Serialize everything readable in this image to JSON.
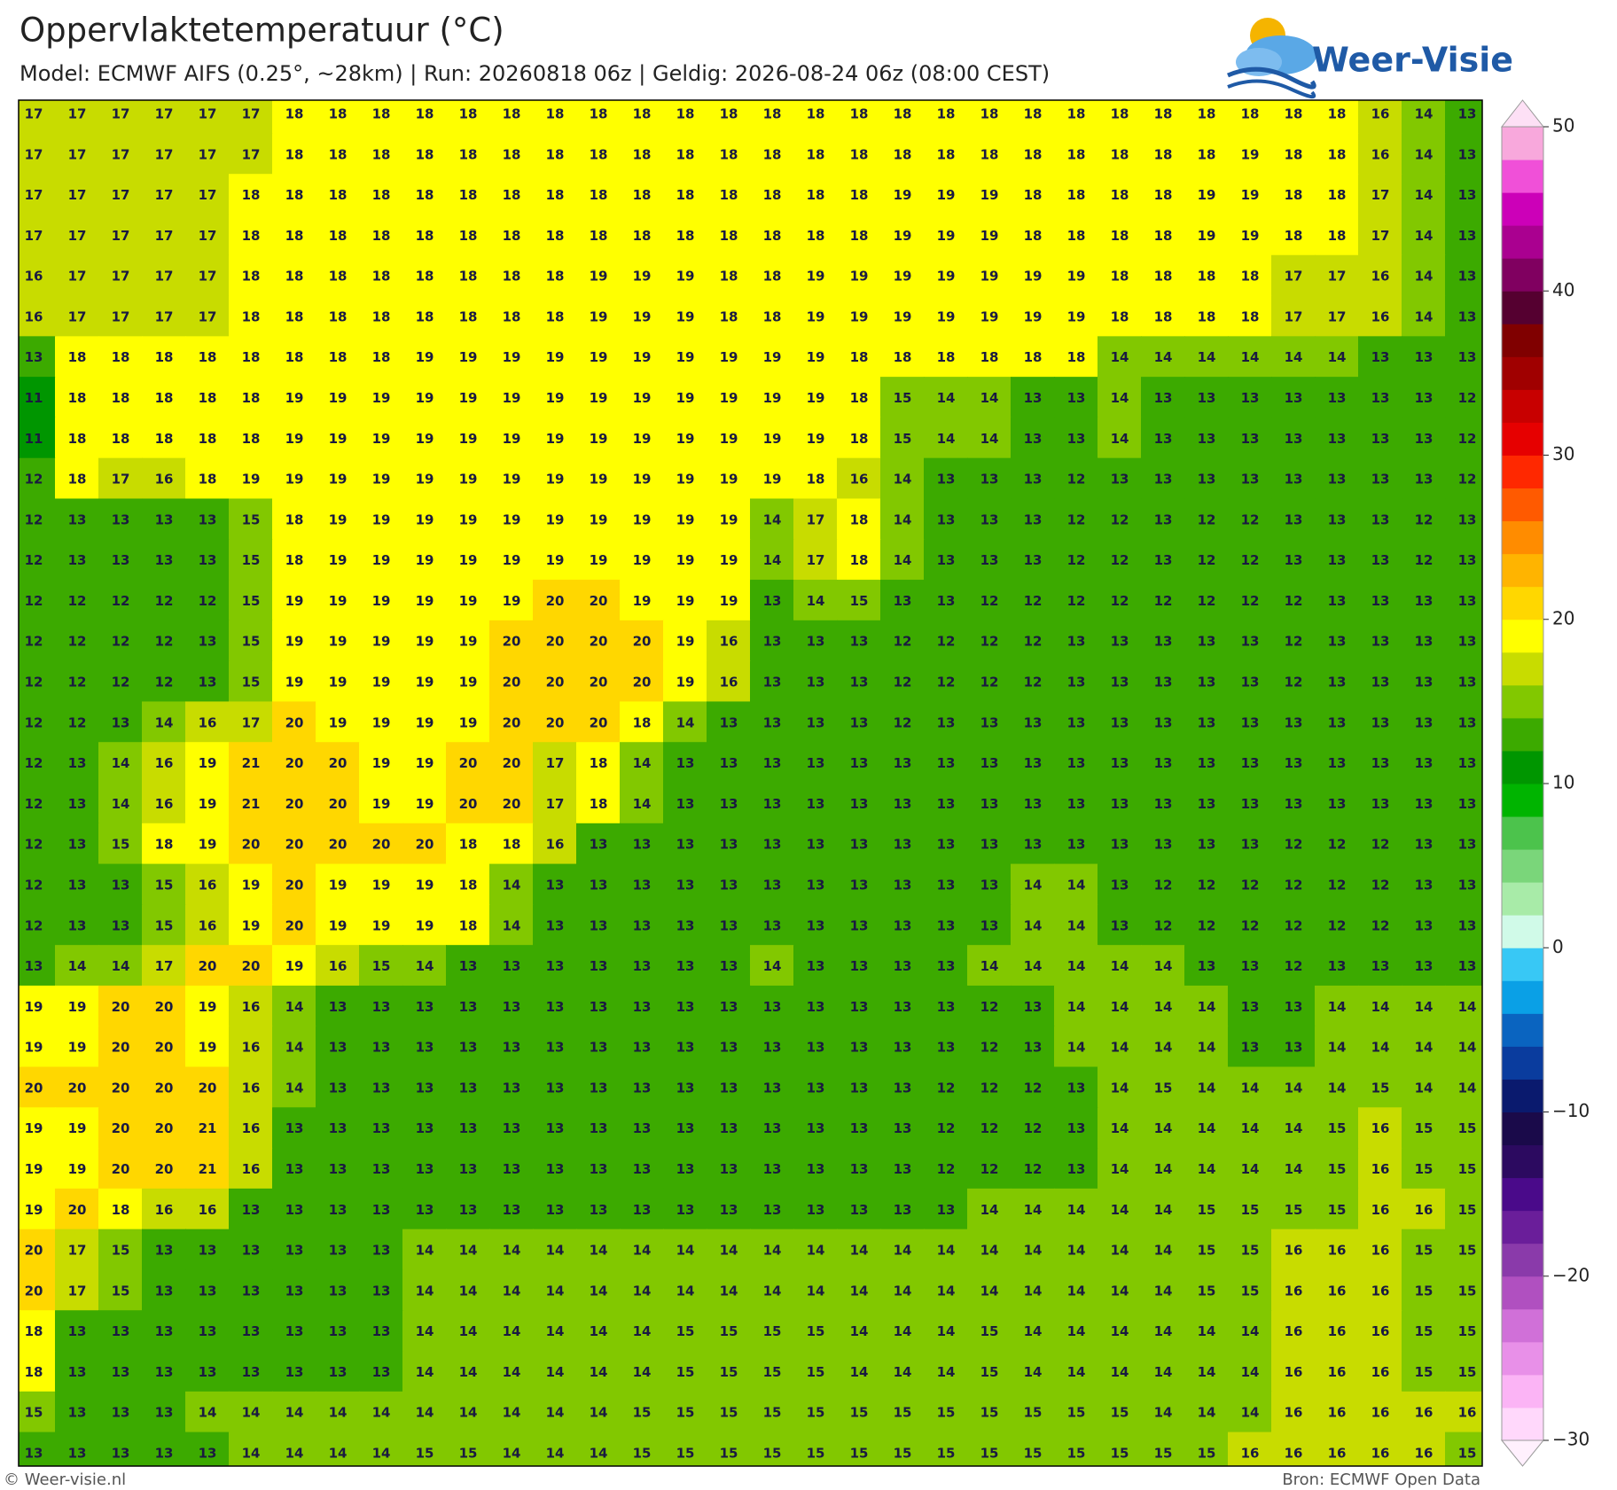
{
  "chart_data": {
    "type": "heatmap",
    "title": "Oppervlaktetemperatuur (°C)",
    "subtitle": "Model: ECMWF AIFS (0.25°, ~28km)  |  Run: 20260818 06z  |  Geldig: 2026-08-24 06z (08:00 CEST)",
    "values": [
      [
        17,
        17,
        17,
        17,
        17,
        17,
        18,
        18,
        18,
        18,
        18,
        18,
        18,
        18,
        18,
        18,
        18,
        18,
        18,
        18,
        18,
        18,
        18,
        18,
        18,
        18,
        18,
        18,
        18,
        18,
        18,
        16,
        14,
        13
      ],
      [
        17,
        17,
        17,
        17,
        17,
        17,
        18,
        18,
        18,
        18,
        18,
        18,
        18,
        18,
        18,
        18,
        18,
        18,
        18,
        18,
        18,
        18,
        18,
        18,
        18,
        18,
        18,
        18,
        19,
        18,
        18,
        16,
        14,
        13
      ],
      [
        17,
        17,
        17,
        17,
        17,
        18,
        18,
        18,
        18,
        18,
        18,
        18,
        18,
        18,
        18,
        18,
        18,
        18,
        18,
        18,
        19,
        19,
        19,
        18,
        18,
        18,
        18,
        19,
        19,
        18,
        18,
        17,
        14,
        13
      ],
      [
        17,
        17,
        17,
        17,
        17,
        18,
        18,
        18,
        18,
        18,
        18,
        18,
        18,
        18,
        18,
        18,
        18,
        18,
        18,
        18,
        19,
        19,
        19,
        18,
        18,
        18,
        18,
        19,
        19,
        18,
        18,
        17,
        14,
        13
      ],
      [
        16,
        17,
        17,
        17,
        17,
        18,
        18,
        18,
        18,
        18,
        18,
        18,
        18,
        19,
        19,
        19,
        18,
        18,
        19,
        19,
        19,
        19,
        19,
        19,
        19,
        18,
        18,
        18,
        18,
        17,
        17,
        16,
        14,
        13
      ],
      [
        16,
        17,
        17,
        17,
        17,
        18,
        18,
        18,
        18,
        18,
        18,
        18,
        18,
        19,
        19,
        19,
        18,
        18,
        19,
        19,
        19,
        19,
        19,
        19,
        19,
        18,
        18,
        18,
        18,
        17,
        17,
        16,
        14,
        13
      ],
      [
        13,
        18,
        18,
        18,
        18,
        18,
        18,
        18,
        18,
        19,
        19,
        19,
        19,
        19,
        19,
        19,
        19,
        19,
        19,
        18,
        18,
        18,
        18,
        18,
        18,
        14,
        14,
        14,
        14,
        14,
        14,
        13,
        13,
        13
      ],
      [
        11,
        18,
        18,
        18,
        18,
        18,
        19,
        19,
        19,
        19,
        19,
        19,
        19,
        19,
        19,
        19,
        19,
        19,
        19,
        18,
        15,
        14,
        14,
        13,
        13,
        14,
        13,
        13,
        13,
        13,
        13,
        13,
        13,
        12
      ],
      [
        11,
        18,
        18,
        18,
        18,
        18,
        19,
        19,
        19,
        19,
        19,
        19,
        19,
        19,
        19,
        19,
        19,
        19,
        19,
        18,
        15,
        14,
        14,
        13,
        13,
        14,
        13,
        13,
        13,
        13,
        13,
        13,
        13,
        12
      ],
      [
        12,
        18,
        17,
        16,
        18,
        19,
        19,
        19,
        19,
        19,
        19,
        19,
        19,
        19,
        19,
        19,
        19,
        19,
        18,
        16,
        14,
        13,
        13,
        13,
        12,
        13,
        13,
        13,
        13,
        13,
        13,
        13,
        13,
        12
      ],
      [
        12,
        13,
        13,
        13,
        13,
        15,
        18,
        19,
        19,
        19,
        19,
        19,
        19,
        19,
        19,
        19,
        19,
        14,
        17,
        18,
        14,
        13,
        13,
        13,
        12,
        12,
        13,
        12,
        12,
        13,
        13,
        13,
        12,
        13
      ],
      [
        12,
        13,
        13,
        13,
        13,
        15,
        18,
        19,
        19,
        19,
        19,
        19,
        19,
        19,
        19,
        19,
        19,
        14,
        17,
        18,
        14,
        13,
        13,
        13,
        12,
        12,
        13,
        12,
        12,
        13,
        13,
        13,
        12,
        13
      ],
      [
        12,
        12,
        12,
        12,
        12,
        15,
        19,
        19,
        19,
        19,
        19,
        19,
        20,
        20,
        19,
        19,
        19,
        13,
        14,
        15,
        13,
        13,
        12,
        12,
        12,
        12,
        12,
        12,
        12,
        12,
        13,
        13,
        13,
        13
      ],
      [
        12,
        12,
        12,
        12,
        13,
        15,
        19,
        19,
        19,
        19,
        19,
        20,
        20,
        20,
        20,
        19,
        16,
        13,
        13,
        13,
        12,
        12,
        12,
        12,
        13,
        13,
        13,
        13,
        13,
        12,
        13,
        13,
        13,
        13
      ],
      [
        12,
        12,
        12,
        12,
        13,
        15,
        19,
        19,
        19,
        19,
        19,
        20,
        20,
        20,
        20,
        19,
        16,
        13,
        13,
        13,
        12,
        12,
        12,
        12,
        13,
        13,
        13,
        13,
        13,
        12,
        13,
        13,
        13,
        13
      ],
      [
        12,
        12,
        13,
        14,
        16,
        17,
        20,
        19,
        19,
        19,
        19,
        20,
        20,
        20,
        18,
        14,
        13,
        13,
        13,
        13,
        12,
        13,
        13,
        13,
        13,
        13,
        13,
        13,
        13,
        13,
        13,
        13,
        13,
        13
      ],
      [
        12,
        13,
        14,
        16,
        19,
        21,
        20,
        20,
        19,
        19,
        20,
        20,
        17,
        18,
        14,
        13,
        13,
        13,
        13,
        13,
        13,
        13,
        13,
        13,
        13,
        13,
        13,
        13,
        13,
        13,
        13,
        13,
        13,
        13
      ],
      [
        12,
        13,
        14,
        16,
        19,
        21,
        20,
        20,
        19,
        19,
        20,
        20,
        17,
        18,
        14,
        13,
        13,
        13,
        13,
        13,
        13,
        13,
        13,
        13,
        13,
        13,
        13,
        13,
        13,
        13,
        13,
        13,
        13,
        13
      ],
      [
        12,
        13,
        15,
        18,
        19,
        20,
        20,
        20,
        20,
        20,
        18,
        18,
        16,
        13,
        13,
        13,
        13,
        13,
        13,
        13,
        13,
        13,
        13,
        13,
        13,
        13,
        13,
        13,
        13,
        12,
        12,
        12,
        13,
        13
      ],
      [
        12,
        13,
        13,
        15,
        16,
        19,
        20,
        19,
        19,
        19,
        18,
        14,
        13,
        13,
        13,
        13,
        13,
        13,
        13,
        13,
        13,
        13,
        13,
        14,
        14,
        13,
        12,
        12,
        12,
        12,
        12,
        12,
        13,
        13
      ],
      [
        12,
        13,
        13,
        15,
        16,
        19,
        20,
        19,
        19,
        19,
        18,
        14,
        13,
        13,
        13,
        13,
        13,
        13,
        13,
        13,
        13,
        13,
        13,
        14,
        14,
        13,
        12,
        12,
        12,
        12,
        12,
        12,
        13,
        13
      ],
      [
        13,
        14,
        14,
        17,
        20,
        20,
        19,
        16,
        15,
        14,
        13,
        13,
        13,
        13,
        13,
        13,
        13,
        14,
        13,
        13,
        13,
        13,
        14,
        14,
        14,
        14,
        14,
        13,
        13,
        12,
        13,
        13,
        13,
        13
      ],
      [
        19,
        19,
        20,
        20,
        19,
        16,
        14,
        13,
        13,
        13,
        13,
        13,
        13,
        13,
        13,
        13,
        13,
        13,
        13,
        13,
        13,
        13,
        12,
        13,
        14,
        14,
        14,
        14,
        13,
        13,
        14,
        14,
        14,
        14
      ],
      [
        19,
        19,
        20,
        20,
        19,
        16,
        14,
        13,
        13,
        13,
        13,
        13,
        13,
        13,
        13,
        13,
        13,
        13,
        13,
        13,
        13,
        13,
        12,
        13,
        14,
        14,
        14,
        14,
        13,
        13,
        14,
        14,
        14,
        14
      ],
      [
        20,
        20,
        20,
        20,
        20,
        16,
        14,
        13,
        13,
        13,
        13,
        13,
        13,
        13,
        13,
        13,
        13,
        13,
        13,
        13,
        13,
        12,
        12,
        12,
        13,
        14,
        15,
        14,
        14,
        14,
        14,
        15,
        14,
        14
      ],
      [
        19,
        19,
        20,
        20,
        21,
        16,
        13,
        13,
        13,
        13,
        13,
        13,
        13,
        13,
        13,
        13,
        13,
        13,
        13,
        13,
        13,
        12,
        12,
        12,
        13,
        14,
        14,
        14,
        14,
        14,
        15,
        16,
        15,
        15
      ],
      [
        19,
        19,
        20,
        20,
        21,
        16,
        13,
        13,
        13,
        13,
        13,
        13,
        13,
        13,
        13,
        13,
        13,
        13,
        13,
        13,
        13,
        12,
        12,
        12,
        13,
        14,
        14,
        14,
        14,
        14,
        15,
        16,
        15,
        15
      ],
      [
        19,
        20,
        18,
        16,
        16,
        13,
        13,
        13,
        13,
        13,
        13,
        13,
        13,
        13,
        13,
        13,
        13,
        13,
        13,
        13,
        13,
        13,
        14,
        14,
        14,
        14,
        14,
        15,
        15,
        15,
        15,
        16,
        16,
        15
      ],
      [
        20,
        17,
        15,
        13,
        13,
        13,
        13,
        13,
        13,
        14,
        14,
        14,
        14,
        14,
        14,
        14,
        14,
        14,
        14,
        14,
        14,
        14,
        14,
        14,
        14,
        14,
        14,
        15,
        15,
        16,
        16,
        16,
        15,
        15
      ],
      [
        20,
        17,
        15,
        13,
        13,
        13,
        13,
        13,
        13,
        14,
        14,
        14,
        14,
        14,
        14,
        14,
        14,
        14,
        14,
        14,
        14,
        14,
        14,
        14,
        14,
        14,
        14,
        15,
        15,
        16,
        16,
        16,
        15,
        15
      ],
      [
        18,
        13,
        13,
        13,
        13,
        13,
        13,
        13,
        13,
        14,
        14,
        14,
        14,
        14,
        14,
        15,
        15,
        15,
        15,
        14,
        14,
        14,
        15,
        14,
        14,
        14,
        14,
        14,
        14,
        16,
        16,
        16,
        15,
        15
      ],
      [
        18,
        13,
        13,
        13,
        13,
        13,
        13,
        13,
        13,
        14,
        14,
        14,
        14,
        14,
        14,
        15,
        15,
        15,
        15,
        14,
        14,
        14,
        15,
        14,
        14,
        14,
        14,
        14,
        14,
        16,
        16,
        16,
        15,
        15
      ],
      [
        15,
        13,
        13,
        13,
        14,
        14,
        14,
        14,
        14,
        14,
        14,
        14,
        14,
        14,
        15,
        15,
        15,
        15,
        15,
        15,
        15,
        15,
        15,
        15,
        15,
        15,
        14,
        14,
        14,
        16,
        16,
        16,
        16,
        16
      ],
      [
        13,
        13,
        13,
        13,
        13,
        14,
        14,
        14,
        14,
        15,
        15,
        14,
        14,
        14,
        15,
        15,
        15,
        15,
        15,
        15,
        15,
        15,
        15,
        15,
        15,
        15,
        15,
        15,
        16,
        16,
        16,
        16,
        16,
        15
      ]
    ],
    "colorbar": {
      "levels": [
        -30,
        -28,
        -26,
        -24,
        -22,
        -20,
        -18,
        -16,
        -14,
        -12,
        -10,
        -8,
        -6,
        -4,
        -2,
        0,
        2,
        4,
        6,
        8,
        10,
        12,
        14,
        16,
        18,
        20,
        22,
        24,
        26,
        28,
        30,
        32,
        34,
        36,
        38,
        40,
        42,
        44,
        46,
        48,
        50
      ],
      "colors": [
        "#ffd8fb",
        "#fbb4f5",
        "#e890e8",
        "#d070d8",
        "#b050c0",
        "#8a3aaa",
        "#6a1e9a",
        "#4a0a8a",
        "#2c0a60",
        "#1a0a4a",
        "#0a1a6e",
        "#0a3c9e",
        "#0a64c0",
        "#0aa0e6",
        "#38c8f5",
        "#d0fae8",
        "#a8eba8",
        "#7ad67a",
        "#4cc34c",
        "#00b400",
        "#009600",
        "#3caa00",
        "#82c800",
        "#c8dc00",
        "#ffff00",
        "#ffd700",
        "#ffb400",
        "#ff8c00",
        "#ff5a00",
        "#ff2800",
        "#e60000",
        "#c80000",
        "#a00000",
        "#800000",
        "#550030",
        "#800060",
        "#aa0090",
        "#cc00b8",
        "#f050d8",
        "#f8a8dc"
      ],
      "under_color": "#fff0fd",
      "over_color": "#fde0f5",
      "ticks": [
        {
          "value": -30,
          "label": "−30"
        },
        {
          "value": -20,
          "label": "−20"
        },
        {
          "value": -10,
          "label": "−10"
        },
        0,
        10,
        20,
        30,
        40,
        50
      ]
    }
  },
  "branding": {
    "logo": "Weer-Visie",
    "credit": "© Weer-visie.nl",
    "source": "Bron: ECMWF Open Data"
  }
}
